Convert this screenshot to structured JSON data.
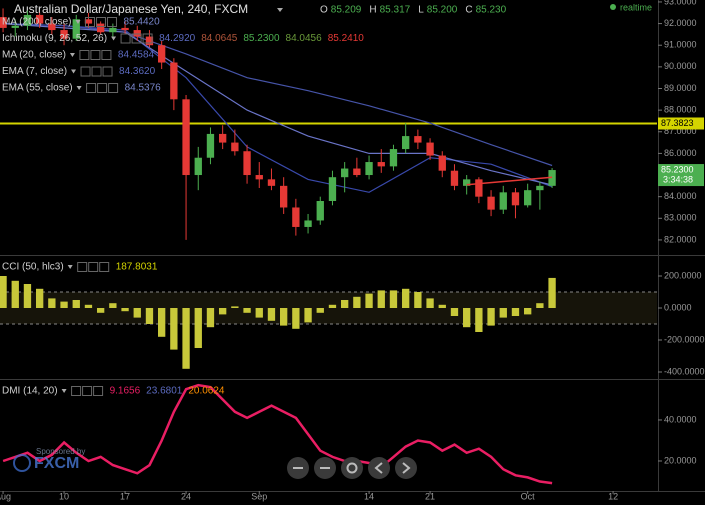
{
  "header": {
    "title": "Australian Dollar/Japanese Yen, 240, FXCM",
    "ohlc": [
      {
        "label": "O",
        "value": "85.209"
      },
      {
        "label": "H",
        "value": "85.317"
      },
      {
        "label": "L",
        "value": "85.200"
      },
      {
        "label": "C",
        "value": "85.230"
      }
    ],
    "status": "realtime"
  },
  "sponsor": {
    "caption": "Sponsored by",
    "brand": "FXCM"
  },
  "chart_data": [
    {
      "type": "candlestick",
      "x": [
        0,
        1,
        2,
        3,
        4,
        5,
        6,
        7,
        8,
        9,
        10,
        11,
        12,
        13,
        14,
        15,
        16,
        17,
        18,
        19,
        20,
        21,
        22,
        23,
        24,
        25,
        26,
        27,
        28,
        29,
        30,
        31,
        32,
        33,
        34,
        35,
        36,
        37,
        38,
        39,
        40,
        41,
        42,
        43,
        44,
        45
      ],
      "open": [
        92.3,
        91.8,
        91.9,
        92.4,
        92.0,
        91.7,
        91.3,
        92.2,
        92.0,
        91.6,
        91.8,
        91.7,
        91.4,
        91.0,
        90.2,
        88.5,
        85.0,
        85.8,
        86.9,
        86.5,
        86.1,
        85.0,
        84.8,
        84.5,
        83.5,
        82.6,
        82.9,
        83.8,
        84.9,
        85.3,
        85.0,
        85.6,
        85.4,
        86.2,
        86.8,
        86.5,
        85.9,
        85.2,
        84.5,
        84.8,
        84.0,
        83.4,
        84.2,
        83.6,
        84.3,
        84.5
      ],
      "high": [
        92.7,
        92.2,
        92.6,
        92.5,
        92.3,
        92.0,
        92.4,
        92.5,
        92.1,
        92.0,
        92.1,
        91.9,
        91.7,
        91.2,
        90.4,
        88.7,
        86.3,
        87.2,
        87.3,
        87.1,
        86.4,
        85.6,
        85.3,
        84.9,
        83.9,
        83.2,
        84.0,
        85.2,
        85.6,
        85.8,
        85.9,
        86.2,
        86.4,
        87.4,
        87.1,
        86.7,
        86.1,
        85.5,
        85.0,
        84.9,
        84.3,
        84.5,
        84.4,
        84.6,
        84.7,
        85.32
      ],
      "low": [
        91.6,
        91.4,
        91.7,
        91.8,
        91.5,
        91.0,
        91.2,
        91.8,
        91.5,
        91.4,
        91.5,
        91.2,
        90.9,
        89.9,
        88.0,
        82.0,
        84.3,
        85.5,
        86.2,
        85.9,
        84.6,
        84.4,
        84.3,
        83.2,
        82.2,
        82.3,
        82.7,
        83.6,
        84.2,
        84.9,
        84.8,
        85.1,
        85.2,
        86.0,
        86.2,
        85.7,
        84.9,
        84.3,
        84.1,
        83.7,
        83.1,
        83.2,
        83.0,
        83.5,
        83.4,
        84.4
      ],
      "close": [
        91.8,
        91.9,
        92.4,
        92.0,
        91.7,
        91.3,
        92.2,
        92.0,
        91.6,
        91.8,
        91.7,
        91.4,
        91.0,
        90.2,
        88.5,
        85.0,
        85.8,
        86.9,
        86.5,
        86.1,
        85.0,
        84.8,
        84.5,
        83.5,
        82.6,
        82.9,
        83.8,
        84.9,
        85.3,
        85.0,
        85.6,
        85.4,
        86.2,
        86.8,
        86.5,
        85.9,
        85.2,
        84.5,
        84.8,
        84.0,
        83.4,
        84.2,
        83.6,
        84.3,
        84.5,
        85.23
      ],
      "up_color": "#4caf50",
      "down_color": "#e53935",
      "series": [
        {
          "name": "MA (200, close)",
          "color": "#4654a8",
          "x": [
            0,
            5,
            10,
            15,
            20,
            25,
            30,
            35,
            40,
            45
          ],
          "values": [
            92.0,
            91.9,
            91.6,
            90.6,
            89.5,
            88.9,
            88.2,
            87.4,
            86.4,
            85.44
          ],
          "readout": [
            {
              "text": "85.4420",
              "color": "#7986cb"
            }
          ]
        },
        {
          "name": "Ichimoku (9, 26, 52, 26)",
          "readout": [
            {
              "text": "84.2920",
              "color": "#5c6bc0"
            },
            {
              "text": "84.0645",
              "color": "#b0553a"
            },
            {
              "text": "85.2300",
              "color": "#4caf50"
            },
            {
              "text": "84.0456",
              "color": "#6a9a3a"
            },
            {
              "text": "85.2410",
              "color": "#e53935"
            }
          ]
        },
        {
          "name": "MA (20, close)",
          "color": "#3949ab",
          "x": [
            0,
            5,
            10,
            15,
            20,
            25,
            30,
            35,
            40,
            45
          ],
          "values": [
            92.0,
            91.9,
            91.7,
            89.5,
            86.3,
            84.8,
            84.2,
            85.8,
            85.5,
            84.46
          ],
          "readout": [
            {
              "text": "84.4584",
              "color": "#5c6bc0"
            }
          ]
        },
        {
          "name": "EMA (7, close)",
          "readout": [
            {
              "text": "84.3620",
              "color": "#5c6bc0"
            }
          ]
        },
        {
          "name": "EMA (55, close)",
          "color": "#6a74c8",
          "x": [
            0,
            5,
            10,
            15,
            20,
            25,
            30,
            35,
            40,
            45
          ],
          "values": [
            92.0,
            91.8,
            91.6,
            89.8,
            88.0,
            86.8,
            86.0,
            86.0,
            85.2,
            84.54
          ],
          "readout": [
            {
              "text": "84.5376",
              "color": "#7986cb"
            }
          ]
        }
      ],
      "hline": {
        "value": 87.3823,
        "color": "#d4d400"
      },
      "trendline": {
        "x": [
          38,
          45
        ],
        "y": [
          84.55,
          84.9
        ],
        "color": "#e53935"
      },
      "last_label": "85.2300",
      "countdown": "3:34:38",
      "xlim": [
        -0.25,
        53.6
      ],
      "ylim": [
        81.35,
        93.09
      ],
      "yticks": [
        {
          "value": 82,
          "label": "82.0000"
        },
        {
          "value": 83,
          "label": "83.0000"
        },
        {
          "value": 84,
          "label": "84.0000"
        },
        {
          "value": 85,
          "label": "85.0000"
        },
        {
          "value": 86,
          "label": "86.0000"
        },
        {
          "value": 87,
          "label": "87.0000"
        },
        {
          "value": 88,
          "label": "88.0000"
        },
        {
          "value": 89,
          "label": "89.0000"
        },
        {
          "value": 90,
          "label": "90.0000"
        },
        {
          "value": 91,
          "label": "91.0000"
        },
        {
          "value": 92,
          "label": "92.0000"
        },
        {
          "value": 93,
          "label": "93.0000"
        }
      ]
    },
    {
      "type": "bar",
      "name": "CCI (50, hlc3)",
      "readout": [
        {
          "text": "187.8031",
          "color": "#d4d400"
        }
      ],
      "x": [
        0,
        1,
        2,
        3,
        4,
        5,
        6,
        7,
        8,
        9,
        10,
        11,
        12,
        13,
        14,
        15,
        16,
        17,
        18,
        19,
        20,
        21,
        22,
        23,
        24,
        25,
        26,
        27,
        28,
        29,
        30,
        31,
        32,
        33,
        34,
        35,
        36,
        37,
        38,
        39,
        40,
        41,
        42,
        43,
        44,
        45
      ],
      "values": [
        200,
        170,
        150,
        120,
        60,
        40,
        50,
        20,
        -30,
        30,
        -20,
        -60,
        -100,
        -180,
        -260,
        -380,
        -250,
        -120,
        -40,
        10,
        -30,
        -60,
        -80,
        -110,
        -130,
        -90,
        -30,
        20,
        50,
        70,
        90,
        110,
        110,
        120,
        100,
        60,
        20,
        -50,
        -120,
        -150,
        -110,
        -60,
        -50,
        -40,
        30,
        188
      ],
      "color": "#c8c83a",
      "band": [
        -100,
        100
      ],
      "xlim": [
        -0.25,
        53.6
      ],
      "ylim": [
        -437.5,
        318.75
      ],
      "yticks": [
        {
          "value": 200,
          "label": "200.0000"
        },
        {
          "value": 0,
          "label": "0.0000"
        },
        {
          "value": -200,
          "label": "-200.0000"
        },
        {
          "value": -400,
          "label": "-400.0000"
        }
      ]
    },
    {
      "type": "line",
      "name": "DMI (14, 20)",
      "readout": [
        {
          "text": "9.1656",
          "color": "#e91e63"
        },
        {
          "text": "23.6801",
          "color": "#5c6bc0"
        },
        {
          "text": "20.0624",
          "color": "#ff8f00"
        }
      ],
      "x": [
        0,
        1,
        2,
        3,
        4,
        5,
        6,
        7,
        8,
        9,
        10,
        11,
        12,
        13,
        14,
        15,
        16,
        17,
        18,
        19,
        20,
        21,
        22,
        23,
        24,
        25,
        26,
        27,
        28,
        29,
        30,
        31,
        32,
        33,
        34,
        35,
        36,
        37,
        38,
        39,
        40,
        41,
        42,
        43,
        44,
        45
      ],
      "values": [
        20,
        22,
        24,
        20,
        23,
        29,
        24,
        20,
        22,
        18,
        16,
        14,
        18,
        30,
        44,
        55,
        57,
        56,
        50,
        44,
        41,
        44,
        47,
        44,
        41,
        33,
        25,
        22,
        20,
        20,
        19,
        17,
        22,
        27,
        30,
        29,
        25,
        28,
        24,
        26,
        22,
        16,
        13,
        12,
        10,
        9.2
      ],
      "color": "#e91e63",
      "xlim": [
        -0.25,
        53.6
      ],
      "ylim": [
        5.85,
        59
      ],
      "yticks": [
        {
          "value": 20,
          "label": "20.0000"
        },
        {
          "value": 40,
          "label": "40.0000"
        }
      ],
      "xticks": [
        {
          "value": 0,
          "label": "Aug"
        },
        {
          "value": 5,
          "label": "10"
        },
        {
          "value": 10,
          "label": "17"
        },
        {
          "value": 15,
          "label": "24"
        },
        {
          "value": 21,
          "label": "Sep"
        },
        {
          "value": 30,
          "label": "14"
        },
        {
          "value": 35,
          "label": "21"
        },
        {
          "value": 43,
          "label": "Oct"
        },
        {
          "value": 50,
          "label": "12"
        }
      ]
    }
  ]
}
